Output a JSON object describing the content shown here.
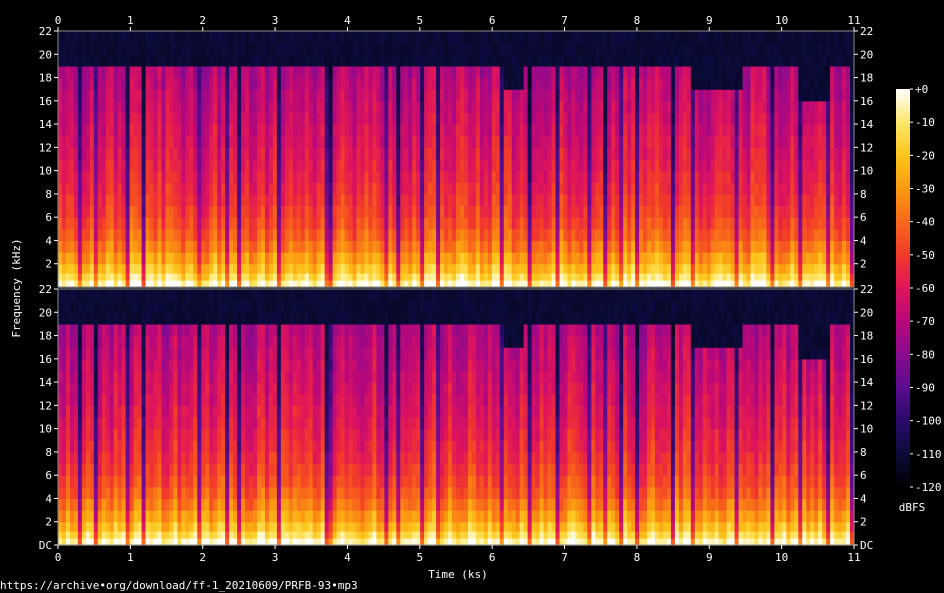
{
  "chart_data": {
    "type": "heatmap",
    "subtype": "spectrogram",
    "xlabel": "Time (ks)",
    "ylabel": "Frequency (kHz)",
    "x_ticks": [
      "0",
      "1",
      "2",
      "3",
      "4",
      "5",
      "6",
      "7",
      "8",
      "9",
      "10",
      "11"
    ],
    "xlim": [
      0,
      11
    ],
    "y_ticks_top": [
      "2",
      "4",
      "6",
      "8",
      "10",
      "12",
      "14",
      "16",
      "18",
      "20",
      "22"
    ],
    "y_ticks_bottom": [
      "DC",
      "2",
      "4",
      "6",
      "8",
      "10",
      "12",
      "14",
      "16",
      "18",
      "20",
      "22"
    ],
    "ylim_khz": [
      0,
      22
    ],
    "channels": [
      "left",
      "right"
    ],
    "colorbar": {
      "label": "dBFS",
      "ticks": [
        "+0",
        "-10",
        "-20",
        "-30",
        "-40",
        "-50",
        "-60",
        "-70",
        "-80",
        "-90",
        "-100",
        "-110",
        "-120"
      ],
      "range": [
        -120,
        0
      ],
      "colors": [
        "#000000",
        "#0b0b3a",
        "#2a0b6b",
        "#5a0b8f",
        "#8a0a8e",
        "#b8087a",
        "#e0155a",
        "#f23a2a",
        "#f8681a",
        "#fb9a12",
        "#fcc51a",
        "#fde86a",
        "#ffffff"
      ]
    },
    "noise_floor_dbfs": -110,
    "lowpass_cutoff_khz": 19,
    "reduced_cutoff_segments": [
      {
        "t_start": 6.15,
        "t_end": 6.45,
        "cutoff_khz": 17
      },
      {
        "t_start": 8.75,
        "t_end": 9.45,
        "cutoff_khz": 16.5
      },
      {
        "t_start": 10.25,
        "t_end": 10.65,
        "cutoff_khz": 16
      }
    ],
    "track_gaps_ks": [
      0.3,
      0.5,
      0.98,
      1.2,
      1.96,
      2.33,
      2.48,
      3.07,
      3.69,
      3.78,
      4.52,
      4.69,
      5.05,
      5.25,
      6.14,
      6.5,
      6.88,
      7.35,
      7.55,
      7.8,
      8.0,
      8.5,
      8.75,
      9.38,
      9.85,
      10.25,
      10.65,
      10.95
    ]
  },
  "source_url": "https://archive•org/download/ff-1_20210609/PRFB-93•mp3"
}
